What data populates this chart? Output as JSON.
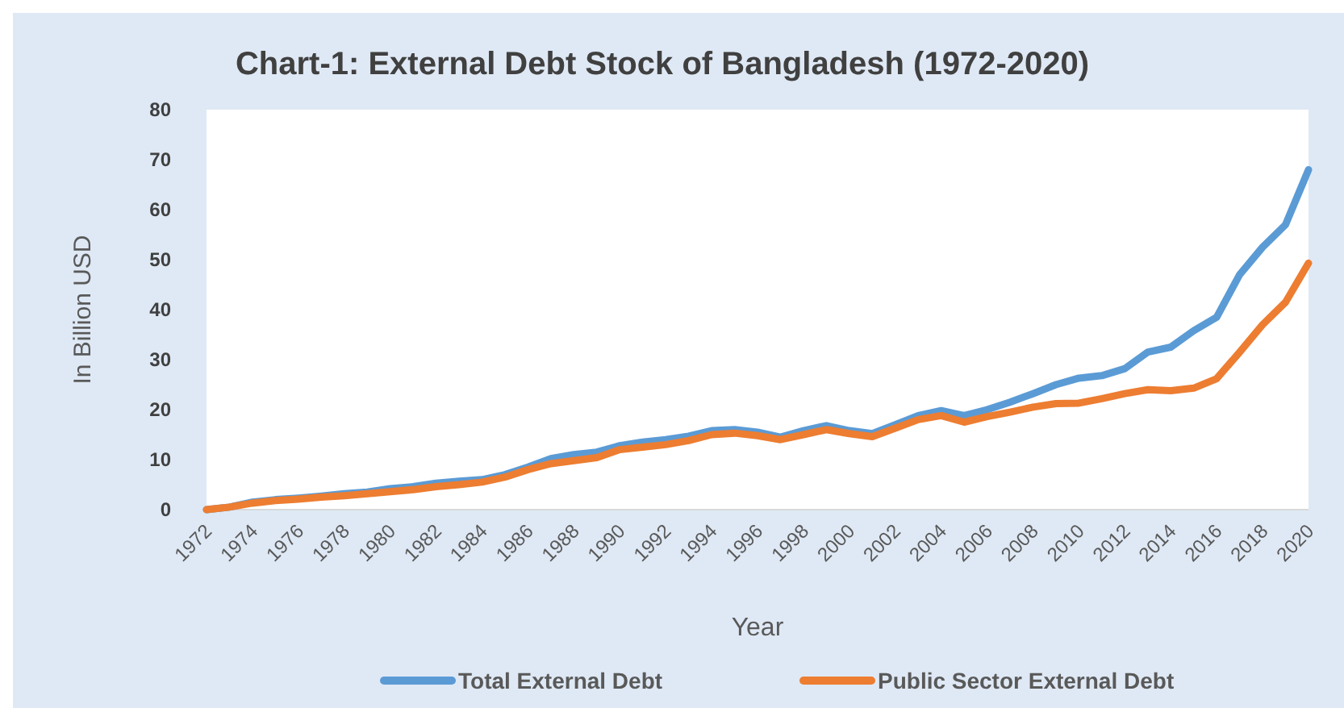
{
  "chart_data": {
    "type": "line",
    "title": "Chart-1: External Debt Stock of Bangladesh (1972-2020)",
    "xlabel": "Year",
    "ylabel": "In Billion USD",
    "x": [
      1972,
      1973,
      1974,
      1975,
      1976,
      1977,
      1978,
      1979,
      1980,
      1981,
      1982,
      1983,
      1984,
      1985,
      1986,
      1987,
      1988,
      1989,
      1990,
      1991,
      1992,
      1993,
      1994,
      1995,
      1996,
      1997,
      1998,
      1999,
      2000,
      2001,
      2002,
      2003,
      2004,
      2005,
      2006,
      2007,
      2008,
      2009,
      2010,
      2011,
      2012,
      2013,
      2014,
      2015,
      2016,
      2017,
      2018,
      2019,
      2020
    ],
    "series": [
      {
        "name": "Total External Debt",
        "color": "#5b9bd5",
        "values": [
          0,
          0.5,
          1.5,
          2,
          2.3,
          2.7,
          3.2,
          3.5,
          4.2,
          4.6,
          5.3,
          5.7,
          6,
          7,
          8.5,
          10.2,
          11,
          11.5,
          12.8,
          13.5,
          14,
          14.7,
          15.8,
          16,
          15.5,
          14.5,
          15.8,
          16.8,
          15.8,
          15.2,
          17,
          18.8,
          19.8,
          18.8,
          20,
          21.5,
          23.2,
          25,
          26.3,
          26.8,
          28.2,
          31.5,
          32.5,
          35.8,
          38.5,
          47,
          52.5,
          57,
          68
        ]
      },
      {
        "name": "Public Sector External Debt",
        "color": "#ed7d31",
        "values": [
          0,
          0.5,
          1.3,
          1.8,
          2.1,
          2.5,
          2.8,
          3.2,
          3.6,
          4,
          4.6,
          5,
          5.5,
          6.5,
          8,
          9.2,
          9.8,
          10.4,
          12,
          12.5,
          13,
          13.8,
          15,
          15.3,
          14.8,
          14,
          15,
          16,
          15.2,
          14.6,
          16.3,
          18,
          18.8,
          17.5,
          18.6,
          19.5,
          20.5,
          21.2,
          21.3,
          22.2,
          23.2,
          24,
          23.8,
          24.3,
          26.2,
          31.5,
          37,
          41.5,
          49.3
        ]
      }
    ],
    "xlim": [
      1972,
      2020
    ],
    "xticks": [
      1972,
      1974,
      1976,
      1978,
      1980,
      1982,
      1984,
      1986,
      1988,
      1990,
      1992,
      1994,
      1996,
      1998,
      2000,
      2002,
      2004,
      2006,
      2008,
      2010,
      2012,
      2014,
      2016,
      2018,
      2020
    ],
    "ylim": [
      0,
      80
    ],
    "yticks": [
      0,
      10,
      20,
      30,
      40,
      50,
      60,
      70,
      80
    ],
    "grid": false,
    "legend": "bottom",
    "marker": "none",
    "line_style": "solid"
  }
}
